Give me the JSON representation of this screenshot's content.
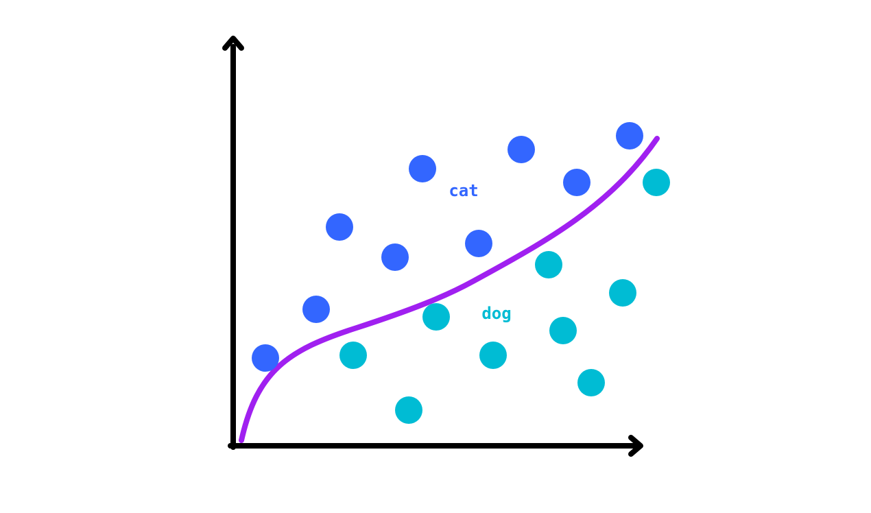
{
  "classes": [
    {
      "label": "cat",
      "color": "#3366ff"
    },
    {
      "label": "dog",
      "color": "#00bcd4"
    }
  ],
  "boundary_color": "#a020f0",
  "axis_color": "#000000"
}
